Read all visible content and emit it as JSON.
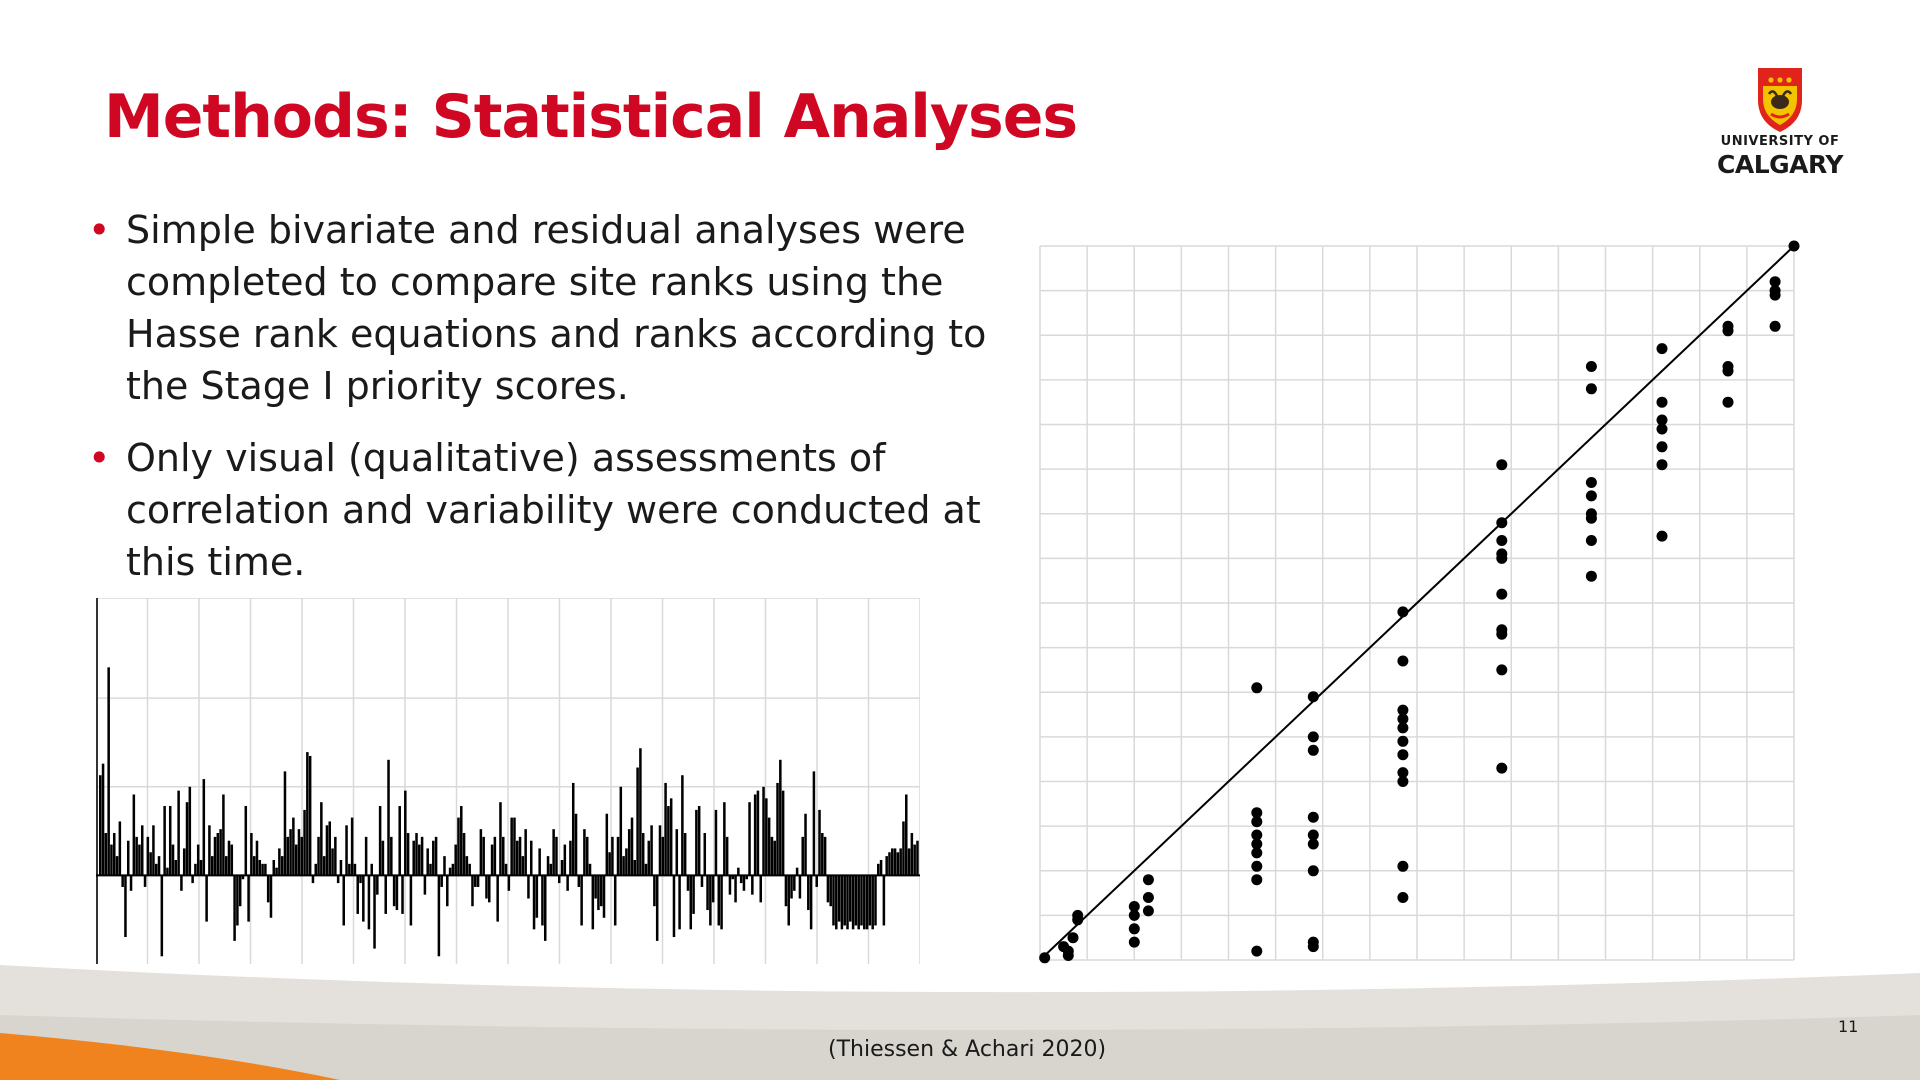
{
  "slide": {
    "title": "Methods: Statistical Analyses",
    "bullets": [
      "Simple bivariate and residual analyses were completed to compare site ranks using the Hasse rank equations and ranks according to the Stage I priority scores.",
      "Only visual (qualitative) assessments of correlation and variability were conducted at this time."
    ],
    "bullet_glyph": "•",
    "citation": "(Thiessen & Achari 2020)",
    "page_number": "11"
  },
  "logo": {
    "line1": "UNIVERSITY OF",
    "line2": "CALGARY",
    "icon": "university-crest-icon"
  },
  "colors": {
    "title": "#cf0722",
    "bullet": "#cf0722",
    "text": "#1a1a1a",
    "grid": "#d9d9d9",
    "marks": "#000000",
    "footer_gray": "#d8d5ce",
    "footer_orange": "#f0831e"
  },
  "chart_data": [
    {
      "type": "bar",
      "description_role": "residuals",
      "title": "",
      "xlabel": "",
      "ylabel": "",
      "ylim": [
        -2.3,
        7.2
      ],
      "grid": true,
      "values": [
        2.6,
        2.9,
        1.1,
        5.4,
        0.8,
        1.1,
        0.5,
        1.4,
        -0.3,
        -1.6,
        0.9,
        -0.4,
        2.1,
        1.0,
        0.8,
        1.3,
        -0.3,
        1.0,
        0.6,
        1.3,
        0.3,
        0.5,
        -2.1,
        1.8,
        0.2,
        1.8,
        0.8,
        0.4,
        2.2,
        -0.4,
        0.7,
        1.9,
        2.3,
        -0.2,
        0.3,
        0.8,
        0.4,
        2.5,
        -1.2,
        1.3,
        0.5,
        1.0,
        1.1,
        1.2,
        2.1,
        0.5,
        0.9,
        0.8,
        -1.7,
        -1.3,
        -0.8,
        -0.1,
        1.8,
        -1.2,
        1.1,
        0.5,
        0.9,
        0.4,
        0.3,
        0.3,
        -0.7,
        -1.1,
        0.4,
        0.2,
        0.7,
        0.5,
        2.7,
        1.0,
        1.2,
        1.5,
        0.8,
        1.2,
        1.0,
        1.7,
        3.2,
        3.1,
        -0.2,
        0.3,
        1.0,
        1.9,
        0.5,
        1.3,
        1.4,
        0.7,
        1.0,
        -0.2,
        0.4,
        -1.3,
        1.3,
        0.3,
        1.5,
        0.3,
        -1.0,
        -0.2,
        -1.2,
        1.0,
        -1.4,
        0.3,
        -1.9,
        -0.5,
        1.8,
        0.9,
        -1.0,
        3.0,
        1.0,
        -0.8,
        -0.9,
        1.8,
        -1.0,
        2.2,
        1.1,
        -1.3,
        0.9,
        1.1,
        0.8,
        1.0,
        -0.5,
        0.7,
        0.3,
        0.9,
        1.0,
        -2.1,
        -0.3,
        0.5,
        -0.8,
        0.2,
        0.3,
        0.8,
        1.5,
        1.8,
        1.1,
        0.5,
        0.3,
        -0.8,
        -0.3,
        -0.3,
        1.2,
        1.0,
        -0.6,
        -0.7,
        0.8,
        1.0,
        -1.2,
        1.9,
        1.0,
        0.3,
        -0.4,
        1.5,
        1.5,
        0.9,
        1.0,
        0.5,
        1.2,
        -0.6,
        0.9,
        -1.4,
        -1.1,
        0.7,
        -1.3,
        -1.7,
        0.5,
        0.3,
        1.2,
        1.0,
        -0.2,
        0.4,
        0.8,
        -0.4,
        0.9,
        2.4,
        1.6,
        -0.3,
        -1.3,
        1.2,
        1.0,
        0.3,
        -1.4,
        -0.6,
        -0.9,
        -0.8,
        -1.1,
        1.6,
        0.6,
        1.0,
        -1.3,
        1.0,
        2.3,
        0.5,
        0.7,
        1.2,
        1.5,
        0.4,
        2.8,
        3.3,
        1.1,
        0.3,
        0.9,
        1.3,
        -0.8,
        -1.7,
        1.3,
        1.0,
        2.4,
        1.8,
        2.0,
        -1.6,
        1.2,
        -1.4,
        2.6,
        1.1,
        -0.4,
        -1.4,
        -1.0,
        1.7,
        1.8,
        -0.3,
        1.1,
        -0.9,
        -1.3,
        -0.7,
        1.7,
        -1.3,
        -1.4,
        1.9,
        1.0,
        -0.5,
        -0.1,
        -0.7,
        0.2,
        -0.2,
        -0.4,
        -0.1,
        1.9,
        -0.5,
        2.1,
        2.2,
        -0.7,
        2.3,
        2.0,
        1.5,
        1.0,
        0.9,
        2.4,
        3.0,
        2.2,
        -0.8,
        -1.3,
        -0.6,
        -0.4,
        0.2,
        -0.6,
        1.0,
        1.6,
        -0.9,
        -1.4,
        2.7,
        -0.3,
        1.7,
        1.1,
        1.0,
        -0.7,
        -0.8,
        -1.3,
        -1.4,
        -1.2,
        -1.4,
        -1.3,
        -1.4,
        -1.2,
        -1.4,
        -1.3,
        -1.4,
        -1.3,
        -1.4,
        -1.4,
        -1.3,
        -1.4,
        -1.3,
        0.3,
        0.4,
        -1.3,
        0.5,
        0.6,
        0.7,
        0.7,
        0.6,
        0.7,
        1.4,
        2.1,
        0.7,
        1.1,
        0.8,
        0.9
      ]
    },
    {
      "type": "scatter",
      "description_role": "rank-comparison",
      "title": "",
      "xlabel": "",
      "ylabel": "",
      "xlim": [
        0,
        16
      ],
      "ylim": [
        0,
        16
      ],
      "grid": true,
      "trendline": [
        [
          0,
          0
        ],
        [
          16,
          16
        ]
      ],
      "points": [
        [
          0.1,
          0.05
        ],
        [
          0.5,
          0.3
        ],
        [
          0.6,
          0.2
        ],
        [
          0.6,
          0.1
        ],
        [
          0.7,
          0.5
        ],
        [
          0.8,
          0.9
        ],
        [
          0.8,
          1.0
        ],
        [
          2.0,
          0.4
        ],
        [
          2.0,
          0.7
        ],
        [
          2.0,
          1.0
        ],
        [
          2.0,
          1.2
        ],
        [
          2.3,
          1.1
        ],
        [
          2.3,
          1.4
        ],
        [
          2.3,
          1.8
        ],
        [
          4.6,
          0.2
        ],
        [
          4.6,
          1.8
        ],
        [
          4.6,
          2.1
        ],
        [
          4.6,
          2.4
        ],
        [
          4.6,
          2.6
        ],
        [
          4.6,
          2.8
        ],
        [
          4.6,
          3.1
        ],
        [
          4.6,
          3.3
        ],
        [
          4.6,
          6.1
        ],
        [
          5.8,
          0.3
        ],
        [
          5.8,
          0.4
        ],
        [
          5.8,
          2.0
        ],
        [
          5.8,
          2.6
        ],
        [
          5.8,
          2.8
        ],
        [
          5.8,
          3.2
        ],
        [
          5.8,
          4.7
        ],
        [
          5.8,
          5.0
        ],
        [
          5.8,
          5.9
        ],
        [
          7.7,
          1.4
        ],
        [
          7.7,
          2.1
        ],
        [
          7.7,
          4.0
        ],
        [
          7.7,
          4.2
        ],
        [
          7.7,
          4.6
        ],
        [
          7.7,
          4.9
        ],
        [
          7.7,
          5.2
        ],
        [
          7.7,
          5.4
        ],
        [
          7.7,
          5.6
        ],
        [
          7.7,
          6.7
        ],
        [
          7.7,
          7.8
        ],
        [
          9.8,
          4.3
        ],
        [
          9.8,
          6.5
        ],
        [
          9.8,
          7.3
        ],
        [
          9.8,
          7.4
        ],
        [
          9.8,
          8.2
        ],
        [
          9.8,
          9.0
        ],
        [
          9.8,
          9.1
        ],
        [
          9.8,
          9.4
        ],
        [
          9.8,
          9.8
        ],
        [
          9.8,
          11.1
        ],
        [
          11.7,
          8.6
        ],
        [
          11.7,
          9.4
        ],
        [
          11.7,
          9.9
        ],
        [
          11.7,
          10.0
        ],
        [
          11.7,
          10.4
        ],
        [
          11.7,
          10.7
        ],
        [
          11.7,
          12.8
        ],
        [
          11.7,
          13.3
        ],
        [
          13.2,
          9.5
        ],
        [
          13.2,
          11.1
        ],
        [
          13.2,
          11.5
        ],
        [
          13.2,
          11.9
        ],
        [
          13.2,
          12.1
        ],
        [
          13.2,
          12.5
        ],
        [
          13.2,
          13.7
        ],
        [
          14.6,
          12.5
        ],
        [
          14.6,
          13.2
        ],
        [
          14.6,
          13.3
        ],
        [
          14.6,
          14.1
        ],
        [
          14.6,
          14.2
        ],
        [
          15.6,
          14.2
        ],
        [
          15.6,
          14.9
        ],
        [
          15.6,
          15.0
        ],
        [
          15.6,
          15.2
        ],
        [
          16.0,
          16.0
        ]
      ]
    }
  ]
}
